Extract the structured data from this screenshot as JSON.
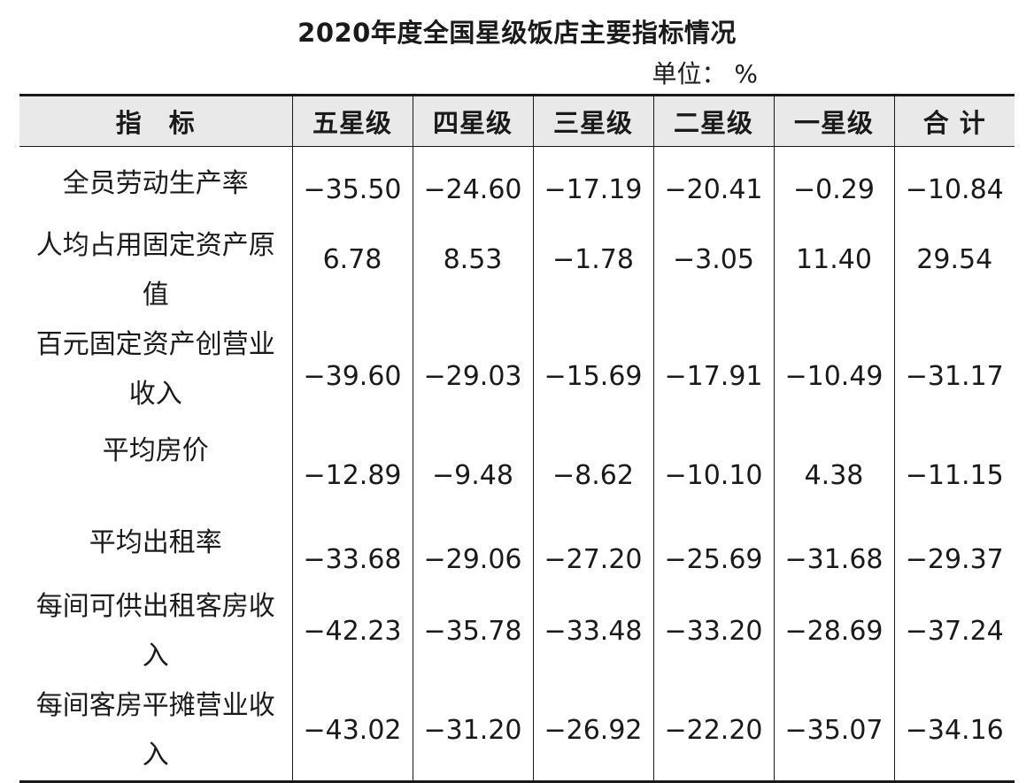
{
  "title": "2020年度全国星级饭店主要指标情况",
  "unit": "单位： %",
  "headers": [
    "指　标",
    "五星级",
    "四星级",
    "三星级",
    "二星级",
    "一星级",
    "合 计"
  ],
  "rows": [
    {
      "label": "全员劳动生产率",
      "values": [
        "−35.50",
        "−24.60",
        "−17.19",
        "−20.41",
        "−0.29",
        "−10.84"
      ]
    },
    {
      "label": "人均占用固定资产原值",
      "values": [
        "6.78",
        "8.53",
        "−1.78",
        "−3.05",
        "11.40",
        "29.54"
      ]
    },
    {
      "label": "百元固定资产创营业收入",
      "values": [
        "−39.60",
        "−29.03",
        "−15.69",
        "−17.91",
        "−10.49",
        "−31.17"
      ]
    },
    {
      "label": "平均房价",
      "values": [
        "−12.89",
        "−9.48",
        "−8.62",
        "−10.10",
        "4.38",
        "−11.15"
      ]
    },
    {
      "label": "平均出租率",
      "values": [
        "−33.68",
        "−29.06",
        "−27.20",
        "−25.69",
        "−31.68",
        "−29.37"
      ]
    },
    {
      "label": "每间可供出租客房收入",
      "values": [
        "−42.23",
        "−35.78",
        "−33.48",
        "−33.20",
        "−28.69",
        "−37.24"
      ]
    },
    {
      "label": "每间客房平摊营业收入",
      "values": [
        "−43.02",
        "−31.20",
        "−26.92",
        "−22.20",
        "−35.07",
        "−34.16"
      ]
    }
  ]
}
